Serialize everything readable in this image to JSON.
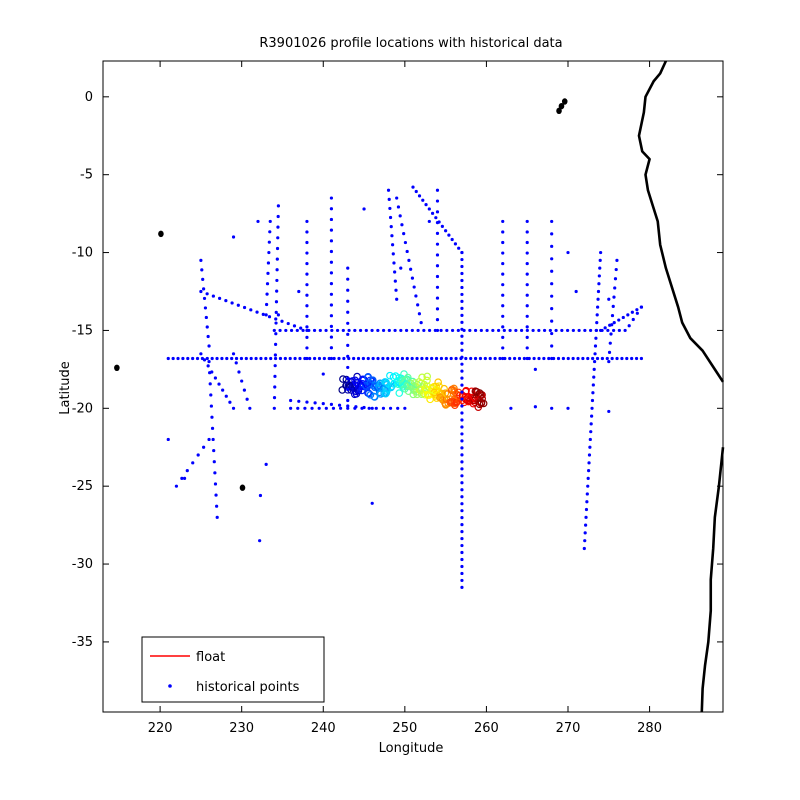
{
  "chart_data": {
    "type": "scatter",
    "title": "R3901026 profile locations with historical data",
    "xlabel": "Longitude",
    "ylabel": "Latitude",
    "xlim": [
      213,
      289
    ],
    "ylim": [
      -39.5,
      2.3
    ],
    "xticks": [
      220,
      230,
      240,
      250,
      260,
      270,
      280
    ],
    "yticks": [
      0,
      -5,
      -10,
      -15,
      -20,
      -25,
      -30,
      -35
    ],
    "grid": false,
    "legend": {
      "placement": "bottom-left",
      "entries": [
        {
          "label": "float",
          "color": "#ff0000",
          "marker": "line"
        },
        {
          "label": "historical points",
          "color": "#0000ff",
          "marker": "dot"
        }
      ]
    },
    "colors": {
      "historical": "#0000ff",
      "coast": "#000000"
    },
    "series": [
      {
        "name": "float",
        "kind": "colored-track",
        "colormap": "jet",
        "points": [
          [
            242.8,
            -18.6
          ],
          [
            243.4,
            -18.3
          ],
          [
            244.0,
            -18.9
          ],
          [
            244.6,
            -18.2
          ],
          [
            245.2,
            -18.7
          ],
          [
            245.9,
            -18.4
          ],
          [
            246.6,
            -18.9
          ],
          [
            247.3,
            -18.5
          ],
          [
            248.0,
            -18.8
          ],
          [
            248.7,
            -18.3
          ],
          [
            249.4,
            -18.6
          ],
          [
            250.1,
            -18.2
          ],
          [
            250.8,
            -18.5
          ],
          [
            251.5,
            -18.7
          ],
          [
            252.2,
            -18.4
          ],
          [
            252.9,
            -18.9
          ],
          [
            253.6,
            -19.1
          ],
          [
            254.3,
            -18.8
          ],
          [
            255.0,
            -19.3
          ],
          [
            255.7,
            -19.2
          ],
          [
            256.4,
            -19.4
          ],
          [
            257.1,
            -19.5
          ],
          [
            257.8,
            -19.1
          ],
          [
            258.5,
            -19.6
          ],
          [
            259.1,
            -19.2
          ],
          [
            259.6,
            -19.5
          ]
        ]
      },
      {
        "name": "historical points",
        "kind": "dot-lines",
        "lines": [
          [
            [
              221,
              -16.8
            ],
            [
              279,
              -16.8
            ],
            0.6
          ],
          [
            [
              234,
              -15
            ],
            [
              277,
              -15
            ],
            0.7
          ],
          [
            [
              225,
              -12.5
            ],
            [
              238,
              -15
            ],
            0.8
          ],
          [
            [
              225,
              -10.5
            ],
            [
              226,
              -16
            ],
            0.6
          ],
          [
            [
              226,
              -17
            ],
            [
              227,
              -27
            ],
            0.7
          ],
          [
            [
              229,
              -16.5
            ],
            [
              231,
              -20
            ],
            0.7
          ],
          [
            [
              234.5,
              -7
            ],
            [
              234,
              -20
            ],
            0.7
          ],
          [
            [
              233.5,
              -8
            ],
            [
              233,
              -14
            ],
            0.7
          ],
          [
            [
              238,
              -8
            ],
            [
              238,
              -16.8
            ],
            0.7
          ],
          [
            [
              241,
              -6.5
            ],
            [
              241,
              -16.8
            ],
            0.7
          ],
          [
            [
              243,
              -11
            ],
            [
              243,
              -19.5
            ],
            0.7
          ],
          [
            [
              248,
              -6
            ],
            [
              249,
              -13
            ],
            0.6
          ],
          [
            [
              249,
              -6.5
            ],
            [
              252,
              -14.5
            ],
            0.6
          ],
          [
            [
              251,
              -5.8
            ],
            [
              257,
              -10
            ],
            0.5
          ],
          [
            [
              257,
              -10
            ],
            [
              257,
              -31.5
            ],
            0.45
          ],
          [
            [
              254,
              -6
            ],
            [
              254,
              -15
            ],
            0.7
          ],
          [
            [
              262,
              -8
            ],
            [
              262,
              -16.8
            ],
            0.7
          ],
          [
            [
              265,
              -8
            ],
            [
              265,
              -16.8
            ],
            0.7
          ],
          [
            [
              268,
              -8
            ],
            [
              268,
              -16.8
            ],
            0.8
          ],
          [
            [
              274,
              -10
            ],
            [
              272,
              -29
            ],
            0.5
          ],
          [
            [
              276,
              -10.5
            ],
            [
              275,
              -17
            ],
            0.6
          ],
          [
            [
              274,
              -15
            ],
            [
              279,
              -13.5
            ],
            0.6
          ],
          [
            [
              222,
              -25
            ],
            [
              226,
              -22
            ],
            0.8
          ],
          [
            [
              225,
              -16.5
            ],
            [
              229,
              -20
            ],
            0.6
          ],
          [
            [
              236,
              -20
            ],
            [
              250,
              -20
            ],
            0.9
          ],
          [
            [
              236,
              -19.5
            ],
            [
              246,
              -20
            ],
            1.0
          ]
        ],
        "points": [
          [
            221,
            -22
          ],
          [
            223,
            -24.5
          ],
          [
            229,
            -9
          ],
          [
            232,
            -8
          ],
          [
            237,
            -12.5
          ],
          [
            245,
            -7.2
          ],
          [
            246,
            -26.1
          ],
          [
            232.3,
            -25.6
          ],
          [
            232.2,
            -28.5
          ],
          [
            233,
            -23.6
          ],
          [
            234.5,
            -14
          ],
          [
            263,
            -20
          ],
          [
            266,
            -19.9
          ],
          [
            268,
            -20
          ],
          [
            270,
            -20
          ],
          [
            275,
            -20.2
          ],
          [
            266,
            -17.5
          ],
          [
            240,
            -17.8
          ],
          [
            270,
            -10
          ],
          [
            271,
            -12.5
          ],
          [
            275,
            -13
          ],
          [
            277.5,
            -14.7
          ],
          [
            278,
            -14.3
          ],
          [
            278.5,
            -13.9
          ],
          [
            279,
            -13.5
          ],
          [
            253,
            -8
          ],
          [
            249.5,
            -11
          ]
        ]
      },
      {
        "name": "coastline",
        "kind": "outline",
        "segments": [
          [
            [
              282,
              2.3
            ],
            [
              281.3,
              1.5
            ],
            [
              280.5,
              1
            ],
            [
              279.5,
              0
            ],
            [
              279.3,
              -1
            ],
            [
              278.7,
              -2.5
            ],
            [
              279.1,
              -3.5
            ],
            [
              280,
              -4
            ],
            [
              279.5,
              -5
            ],
            [
              279.8,
              -6
            ],
            [
              280.4,
              -7
            ],
            [
              281,
              -8
            ],
            [
              281.3,
              -9.5
            ],
            [
              282,
              -11
            ],
            [
              283.5,
              -13.5
            ],
            [
              284,
              -14.5
            ],
            [
              285,
              -15.5
            ],
            [
              286.5,
              -16.3
            ],
            [
              288,
              -17.5
            ],
            [
              289,
              -18.3
            ]
          ],
          [
            [
              289,
              -22.5
            ],
            [
              288.5,
              -25
            ],
            [
              288,
              -27
            ],
            [
              287.8,
              -29
            ],
            [
              287.5,
              -31
            ],
            [
              287.5,
              -33
            ],
            [
              287.2,
              -35
            ],
            [
              286.8,
              -36.5
            ],
            [
              286.5,
              -38
            ],
            [
              286.4,
              -39.5
            ]
          ]
        ],
        "islands": [
          [
            269.2,
            -0.6
          ],
          [
            269.6,
            -0.3
          ],
          [
            268.9,
            -0.9
          ],
          [
            220.1,
            -8.8
          ],
          [
            214.7,
            -17.4
          ],
          [
            230.1,
            -25.1
          ]
        ]
      }
    ]
  }
}
